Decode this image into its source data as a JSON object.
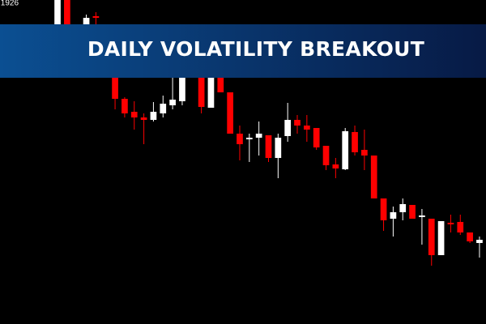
{
  "chart_data": {
    "type": "candlestick",
    "title": "DAILY VOLATILITY BREAKOUT",
    "x": [
      0,
      1,
      3,
      4,
      6,
      7,
      8,
      9,
      10,
      11,
      12,
      13,
      15,
      16,
      17,
      18,
      19,
      20,
      21,
      22,
      23,
      24,
      25,
      26,
      27,
      28,
      29,
      30,
      31,
      32,
      33,
      34,
      35,
      36,
      37,
      38,
      39,
      40,
      41,
      42,
      43,
      44
    ],
    "open": [
      1.19,
      1.193,
      1.19,
      1.191,
      1.1834,
      1.1808,
      1.1792,
      1.1785,
      1.1782,
      1.179,
      1.18,
      1.1805,
      1.1834,
      1.1797,
      1.1834,
      1.1816,
      1.1765,
      1.1758,
      1.176,
      1.1763,
      1.1735,
      1.1762,
      1.1782,
      1.1775,
      1.1772,
      1.175,
      1.1727,
      1.1721,
      1.1767,
      1.1745,
      1.1738,
      1.1685,
      1.166,
      1.1668,
      1.1677,
      1.1662,
      1.166,
      1.1615,
      1.1655,
      1.1656,
      1.1643,
      1.163
    ],
    "high": [
      1.193,
      1.193,
      1.1912,
      1.1915,
      1.1834,
      1.181,
      1.1805,
      1.179,
      1.1804,
      1.1812,
      1.1834,
      1.1834,
      1.1834,
      1.1834,
      1.1834,
      1.1816,
      1.1775,
      1.1765,
      1.178,
      1.1763,
      1.1765,
      1.1803,
      1.1788,
      1.1788,
      1.1772,
      1.175,
      1.1735,
      1.1772,
      1.1775,
      1.177,
      1.1738,
      1.1685,
      1.1675,
      1.1685,
      1.1677,
      1.1672,
      1.166,
      1.1657,
      1.1665,
      1.1665,
      1.1643,
      1.1638
    ],
    "low": [
      1.19,
      1.19,
      1.19,
      1.19,
      1.1795,
      1.1785,
      1.177,
      1.1752,
      1.178,
      1.1785,
      1.1795,
      1.18,
      1.179,
      1.1797,
      1.1816,
      1.1765,
      1.1732,
      1.173,
      1.1738,
      1.173,
      1.171,
      1.1755,
      1.1765,
      1.1755,
      1.1745,
      1.172,
      1.171,
      1.172,
      1.1738,
      1.172,
      1.1685,
      1.1645,
      1.1638,
      1.1658,
      1.166,
      1.1628,
      1.1602,
      1.1615,
      1.1643,
      1.164,
      1.163,
      1.1612
    ],
    "close": [
      1.193,
      1.19,
      1.1908,
      1.1908,
      1.1808,
      1.179,
      1.1785,
      1.1782,
      1.1792,
      1.1802,
      1.1807,
      1.1834,
      1.1798,
      1.1834,
      1.1816,
      1.1765,
      1.1752,
      1.176,
      1.1765,
      1.1735,
      1.176,
      1.1782,
      1.1775,
      1.177,
      1.1748,
      1.1726,
      1.1722,
      1.1768,
      1.1742,
      1.1738,
      1.1685,
      1.1658,
      1.1668,
      1.1678,
      1.166,
      1.1664,
      1.1615,
      1.1657,
      1.1653,
      1.1643,
      1.1632,
      1.1634
    ],
    "up_color": "#ffffff",
    "down_color": "#ff0000",
    "xlim": [
      -6,
      44.68
    ],
    "ylim": [
      1.153,
      1.193
    ],
    "yticks": [
      {
        "value": 1.1926,
        "label": ".1926"
      }
    ],
    "grid": false
  }
}
